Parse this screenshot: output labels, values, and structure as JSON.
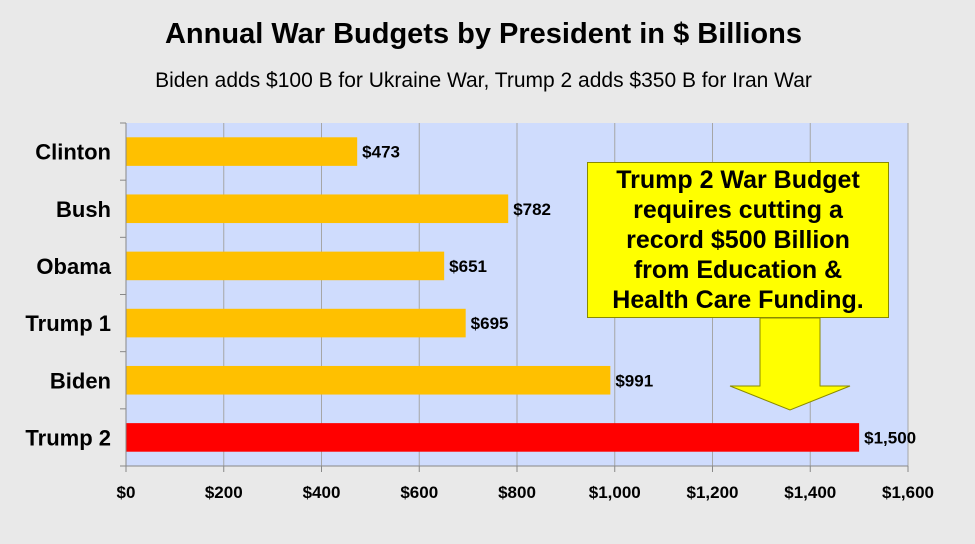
{
  "chart_data": {
    "type": "bar",
    "orientation": "horizontal",
    "title": "Annual War Budgets by President in $ Billions",
    "subtitle": "Biden adds $100 B for Ukraine War, Trump 2 adds $350 B for Iran War",
    "categories": [
      "Clinton",
      "Bush",
      "Obama",
      "Trump 1",
      "Biden",
      "Trump 2"
    ],
    "values": [
      473,
      782,
      651,
      695,
      991,
      1500
    ],
    "data_labels": [
      "$473",
      "$782",
      "$651",
      "$695",
      "$991",
      "$1,500"
    ],
    "bar_colors": [
      "#ffc000",
      "#ffc000",
      "#ffc000",
      "#ffc000",
      "#ffc000",
      "#ff0000"
    ],
    "xlim": [
      0,
      1600
    ],
    "x_ticks": [
      0,
      200,
      400,
      600,
      800,
      1000,
      1200,
      1400,
      1600
    ],
    "x_tick_labels": [
      "$0",
      "$200",
      "$400",
      "$600",
      "$800",
      "$1,000",
      "$1,200",
      "$1,400",
      "$1,600"
    ],
    "grid": "vertical",
    "plot_background": "#cfdcfd",
    "annotation": {
      "text": "Trump 2 War Budget\nrequires cutting a\nrecord $500 Billion\nfrom Education &\nHealth Care Funding.",
      "background": "#ffff00",
      "points_to": "Trump 2"
    }
  }
}
